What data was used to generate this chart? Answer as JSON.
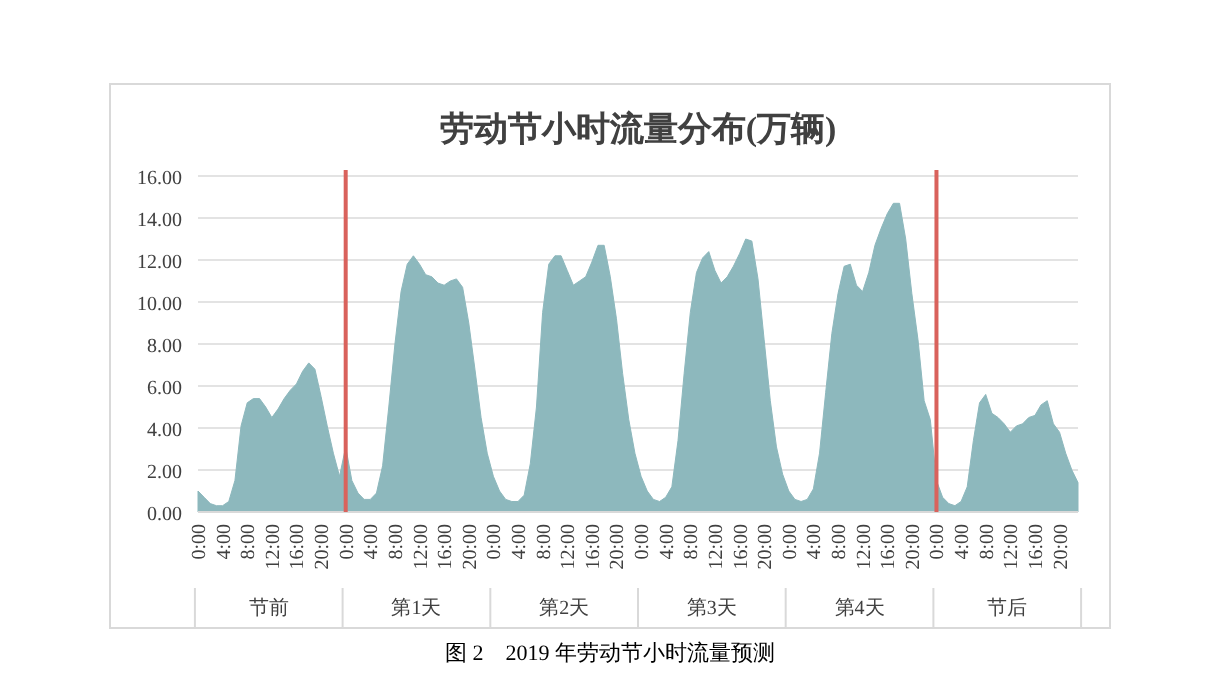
{
  "chart_data": {
    "type": "area",
    "title": "劳动节小时流量分布(万辆)",
    "categories": [
      "0:00",
      null,
      null,
      null,
      "4:00",
      null,
      null,
      null,
      "8:00",
      null,
      null,
      null,
      "12:00",
      null,
      null,
      null,
      "16:00",
      null,
      null,
      null,
      "20:00",
      null,
      null,
      null,
      "0:00",
      null,
      null,
      null,
      "4:00",
      null,
      null,
      null,
      "8:00",
      null,
      null,
      null,
      "12:00",
      null,
      null,
      null,
      "16:00",
      null,
      null,
      null,
      "20:00",
      null,
      null,
      null,
      "0:00",
      null,
      null,
      null,
      "4:00",
      null,
      null,
      null,
      "8:00",
      null,
      null,
      null,
      "12:00",
      null,
      null,
      null,
      "16:00",
      null,
      null,
      null,
      "20:00",
      null,
      null,
      null,
      "0:00",
      null,
      null,
      null,
      "4:00",
      null,
      null,
      null,
      "8:00",
      null,
      null,
      null,
      "12:00",
      null,
      null,
      null,
      "16:00",
      null,
      null,
      null,
      "20:00",
      null,
      null,
      null,
      "0:00",
      null,
      null,
      null,
      "4:00",
      null,
      null,
      null,
      "8:00",
      null,
      null,
      null,
      "12:00",
      null,
      null,
      null,
      "16:00",
      null,
      null,
      null,
      "20:00",
      null,
      null,
      null,
      "0:00",
      null,
      null,
      null,
      "4:00",
      null,
      null,
      null,
      "8:00",
      null,
      null,
      null,
      "12:00",
      null,
      null,
      null,
      "16:00",
      null,
      null,
      null,
      "20:00",
      null,
      null,
      null
    ],
    "series": [
      {
        "color": "#8db8bd",
        "values": [
          1.0,
          0.7,
          0.4,
          0.3,
          0.3,
          0.5,
          1.5,
          4.1,
          5.2,
          5.4,
          5.4,
          5.0,
          4.5,
          4.9,
          5.4,
          5.8,
          6.1,
          6.7,
          7.1,
          6.8,
          5.5,
          4.1,
          2.8,
          1.7,
          3.1,
          1.5,
          0.9,
          0.6,
          0.6,
          0.9,
          2.2,
          5.0,
          8.0,
          10.5,
          11.8,
          12.2,
          11.8,
          11.3,
          11.2,
          10.9,
          10.8,
          11.0,
          11.1,
          10.7,
          9.0,
          6.8,
          4.5,
          2.8,
          1.7,
          1.0,
          0.6,
          0.5,
          0.5,
          0.8,
          2.3,
          5.0,
          9.5,
          11.8,
          12.2,
          12.2,
          11.5,
          10.8,
          11.0,
          11.2,
          11.9,
          12.7,
          12.7,
          11.2,
          9.2,
          6.6,
          4.4,
          2.8,
          1.7,
          1.0,
          0.6,
          0.5,
          0.7,
          1.2,
          3.4,
          6.6,
          9.5,
          11.4,
          12.1,
          12.4,
          11.5,
          10.9,
          11.2,
          11.7,
          12.3,
          13.0,
          12.9,
          11.1,
          8.2,
          5.3,
          3.1,
          1.8,
          1.0,
          0.6,
          0.5,
          0.6,
          1.1,
          2.8,
          5.7,
          8.5,
          10.4,
          11.7,
          11.8,
          10.8,
          10.5,
          11.4,
          12.7,
          13.5,
          14.2,
          14.7,
          14.7,
          13.0,
          10.4,
          8.2,
          5.3,
          4.4,
          1.5,
          0.7,
          0.4,
          0.3,
          0.5,
          1.2,
          3.4,
          5.2,
          5.6,
          4.7,
          4.5,
          4.2,
          3.8,
          4.1,
          4.2,
          4.5,
          4.6,
          5.1,
          5.3,
          4.2,
          3.8,
          2.8,
          2.0,
          1.4
        ]
      }
    ],
    "ylim": [
      0,
      16
    ],
    "yticks": [
      {
        "value": 0,
        "label": "0.00"
      },
      {
        "value": 2,
        "label": "2.00"
      },
      {
        "value": 4,
        "label": "4.00"
      },
      {
        "value": 6,
        "label": "6.00"
      },
      {
        "value": 8,
        "label": "8.00"
      },
      {
        "value": 10,
        "label": "10.00"
      },
      {
        "value": 12,
        "label": "12.00"
      },
      {
        "value": 14,
        "label": "14.00"
      },
      {
        "value": 16,
        "label": "16.00"
      }
    ],
    "grid": "y",
    "annotations": [
      "节前",
      "第1天",
      "第2天",
      "第3天",
      "第4天",
      "节后",
      "图 2　2019 年劳动节小时流量预测"
    ]
  }
}
